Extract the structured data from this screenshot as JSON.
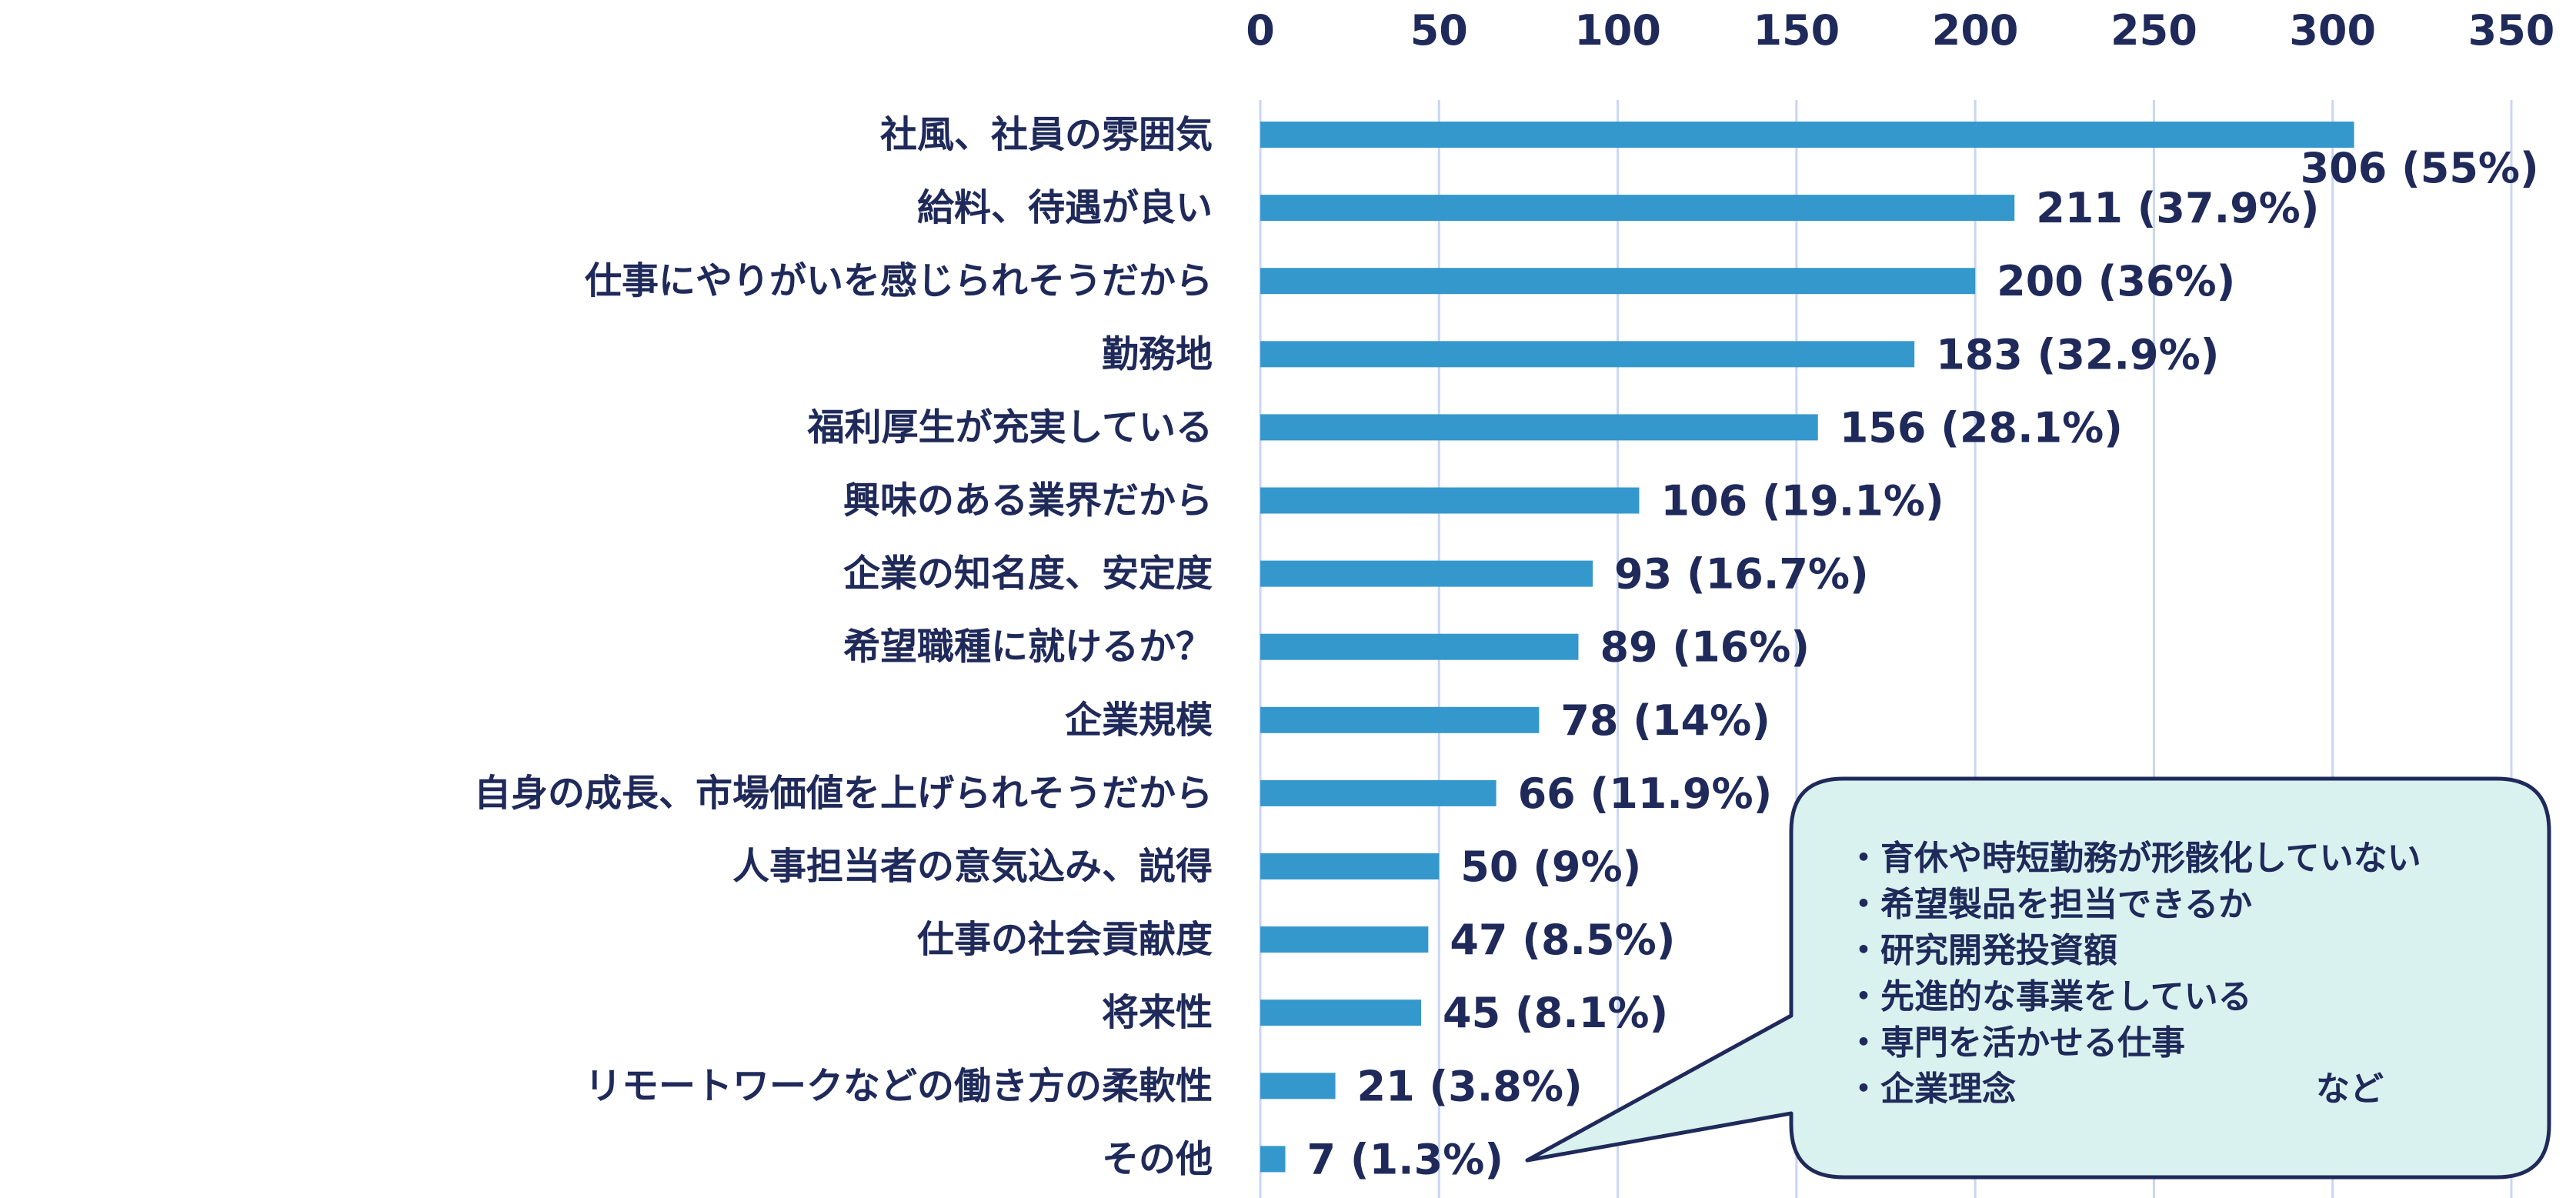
{
  "chart_data": {
    "type": "bar",
    "orientation": "horizontal",
    "categories": [
      "社風、社員の雰囲気",
      "給料、待遇が良い",
      "仕事にやりがいを感じられそうだから",
      "勤務地",
      "福利厚生が充実している",
      "興味のある業界だから",
      "企業の知名度、安定度",
      "希望職種に就けるか？",
      "企業規模",
      "自身の成長、市場価値を上げられそうだから",
      "人事担当者の意気込み、説得",
      "仕事の社会貢献度",
      "将来性",
      "リモートワークなどの働き方の柔軟性",
      "その他"
    ],
    "values": [
      306,
      211,
      200,
      183,
      156,
      106,
      93,
      89,
      78,
      66,
      50,
      47,
      45,
      21,
      7
    ],
    "data_labels": [
      "306 (55%)",
      "211 (37.9%)",
      "200 (36%)",
      "183 (32.9%)",
      "156 (28.1%)",
      "106 (19.1%)",
      "93 (16.7%)",
      "89 (16%)",
      "78 (14%)",
      "66 (11.9%)",
      "50 (9%)",
      "47 (8.5%)",
      "45 (8.1%)",
      "21 (3.8%)",
      "7 (1.3%)"
    ],
    "xlim": [
      0,
      350
    ],
    "x_ticks": [
      0,
      50,
      100,
      150,
      200,
      250,
      300,
      350
    ],
    "x_tick_labels": [
      "0",
      "50",
      "100",
      "150",
      "200",
      "250",
      "300",
      "350"
    ],
    "x_axis_position": "top",
    "grid": true,
    "title": "",
    "xlabel": "",
    "ylabel": "",
    "colors": {
      "bar": "#3598cc",
      "text": "#1f2a5a",
      "grid": "#c9d6f5",
      "callout_fill": "#d9f2f0",
      "callout_stroke": "#1f2a5a"
    },
    "annotation": {
      "points_to": "その他",
      "lines": [
        "・育休や時短勤務が形骸化していない",
        "・希望製品を担当できるか",
        "・研究開発投資額",
        "・先進的な事業をしている",
        "・専門を活かせる仕事",
        "・企業理念"
      ],
      "suffix": "など"
    }
  }
}
